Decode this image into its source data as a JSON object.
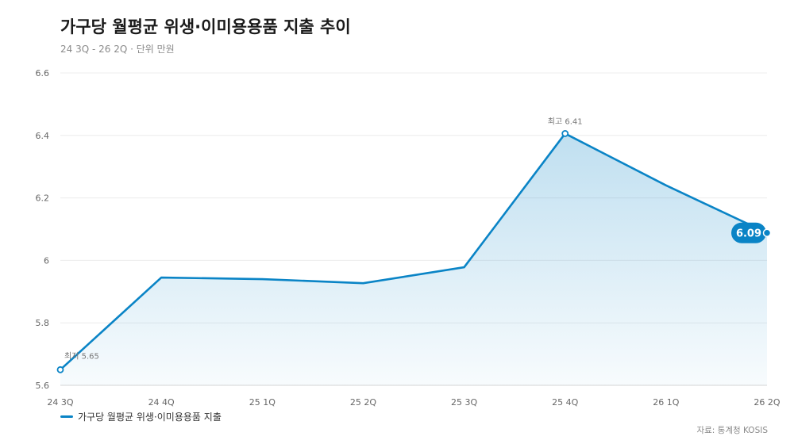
{
  "title": "가구당 월평균 위생·이미용용품 지출 추이",
  "subtitle": "24 3Q - 26 2Q · 단위 만원",
  "source": "자료: 통계청 KOSIS",
  "colors": {
    "line": "#0a84c6",
    "grid": "#ececec",
    "axis": "#d4d4d4",
    "text": "#666666"
  },
  "chart_data": {
    "type": "area",
    "categories": [
      "24 3Q",
      "24 4Q",
      "25 1Q",
      "25 2Q",
      "25 3Q",
      "25 4Q",
      "26 1Q",
      "26 2Q"
    ],
    "series": [
      {
        "name": "가구당 월평균 위생·이미용용품 지출",
        "values": [
          5.65,
          5.945,
          5.94,
          5.927,
          5.978,
          6.406,
          6.24,
          6.088
        ]
      }
    ],
    "ylim": [
      5.6,
      6.6
    ],
    "yticks": [
      "5.6",
      "5.8",
      "6",
      "6.2",
      "6.4",
      "6.6"
    ],
    "annotations": {
      "min": {
        "index": 0,
        "label": "최저 5.65"
      },
      "max": {
        "index": 5,
        "label": "최고 6.41"
      },
      "last": {
        "index": 7,
        "label": "6.09"
      }
    },
    "grid": true,
    "legend": "bottom-left"
  }
}
